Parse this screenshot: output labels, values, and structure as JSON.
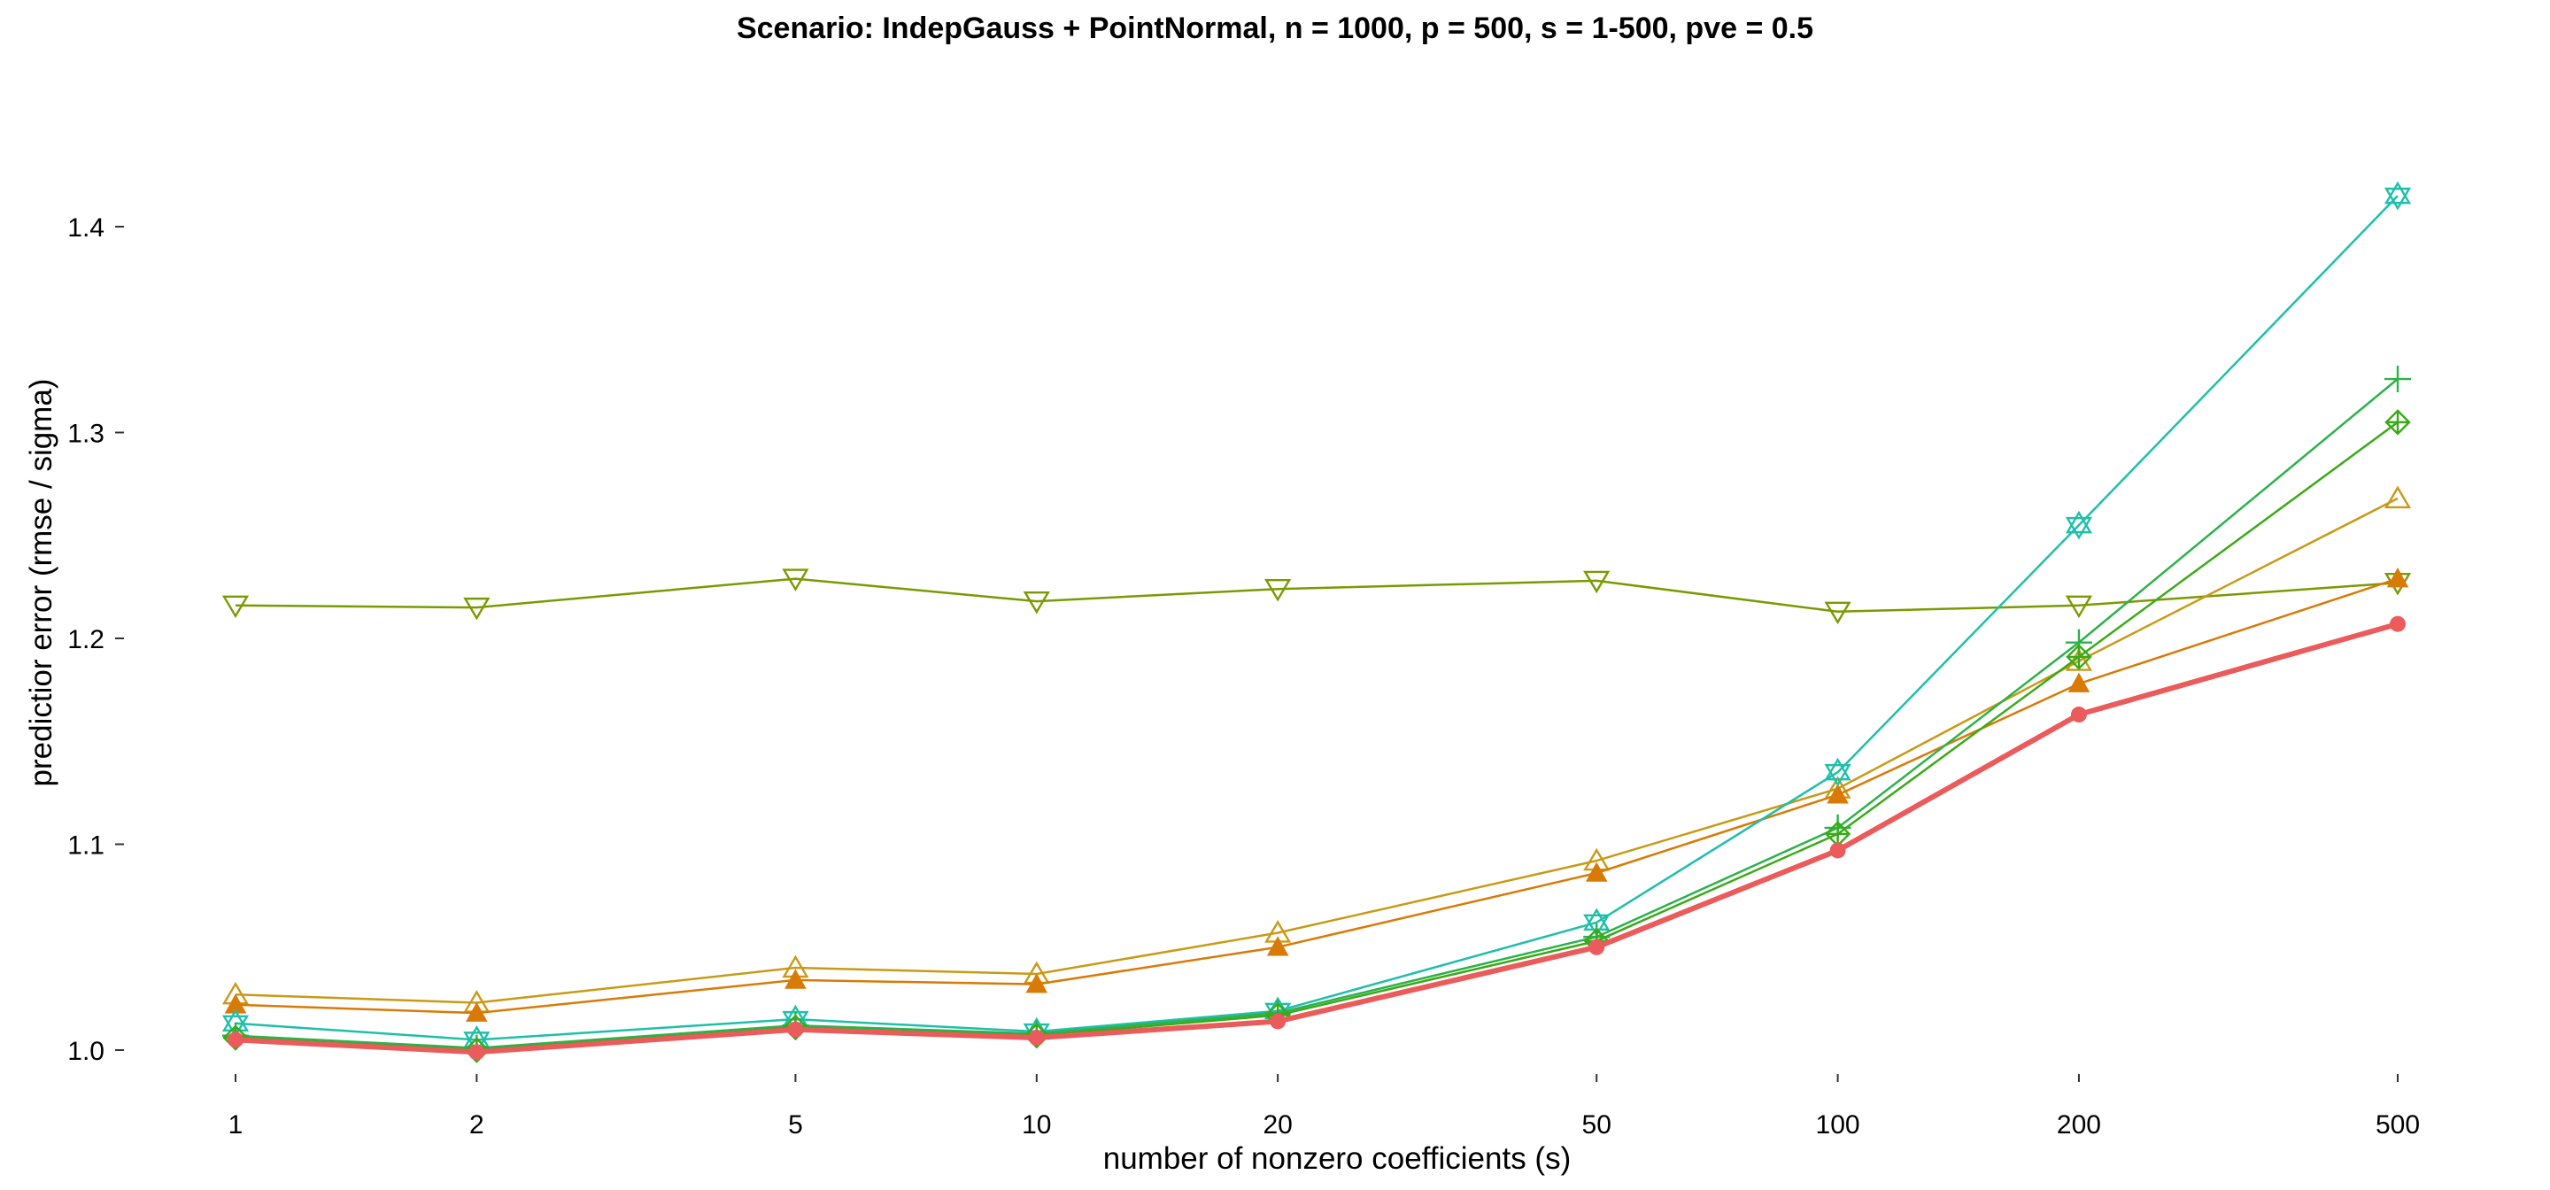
{
  "chart_data": {
    "type": "line",
    "title": "Scenario: IndepGauss + PointNormal, n = 1000, p = 500, s = 1-500, pve = 0.5",
    "xlabel": "number of nonzero coefficients (s)",
    "ylabel": "predictior error (rmse / sigma)",
    "x_scale": "log",
    "x": [
      1,
      2,
      5,
      10,
      20,
      50,
      100,
      200,
      500
    ],
    "x_tick_labels": [
      "1",
      "2",
      "5",
      "10",
      "20",
      "50",
      "100",
      "200",
      "500"
    ],
    "y_ticks": [
      1.0,
      1.1,
      1.2,
      1.3,
      1.4
    ],
    "y_tick_labels": [
      "1.0",
      "1.1",
      "1.2",
      "1.3",
      "1.4"
    ],
    "ylim": [
      0.985,
      1.43
    ],
    "grid": false,
    "legend": "none",
    "series": [
      {
        "color": "#7a9a01",
        "marker": "triangle-down-open",
        "width": 2.5,
        "values": [
          1.216,
          1.215,
          1.229,
          1.218,
          1.224,
          1.228,
          1.213,
          1.216,
          1.227
        ]
      },
      {
        "color": "#c99a16",
        "marker": "triangle-up-open",
        "width": 2.5,
        "values": [
          1.027,
          1.023,
          1.04,
          1.037,
          1.057,
          1.092,
          1.127,
          1.189,
          1.268
        ]
      },
      {
        "color": "#d97a06",
        "marker": "triangle-up-filled",
        "width": 2.5,
        "values": [
          1.022,
          1.018,
          1.034,
          1.032,
          1.05,
          1.086,
          1.124,
          1.178,
          1.229
        ]
      },
      {
        "color": "#1fbfa9",
        "marker": "star-of-david",
        "width": 2.5,
        "values": [
          1.013,
          1.005,
          1.015,
          1.009,
          1.019,
          1.062,
          1.135,
          1.255,
          1.415
        ]
      },
      {
        "color": "#2cb24a",
        "marker": "plus",
        "width": 2.5,
        "values": [
          1.007,
          1.001,
          1.012,
          1.008,
          1.018,
          1.055,
          1.108,
          1.198,
          1.326
        ]
      },
      {
        "color": "#3aaa18",
        "marker": "diamond-plus",
        "width": 2.5,
        "values": [
          1.006,
          1.0,
          1.011,
          1.007,
          1.017,
          1.053,
          1.105,
          1.191,
          1.305
        ]
      },
      {
        "color": "#eb5b5b",
        "marker": "circle-filled",
        "width": 6,
        "values": [
          1.005,
          0.999,
          1.01,
          1.006,
          1.014,
          1.05,
          1.097,
          1.163,
          1.207
        ]
      }
    ]
  }
}
